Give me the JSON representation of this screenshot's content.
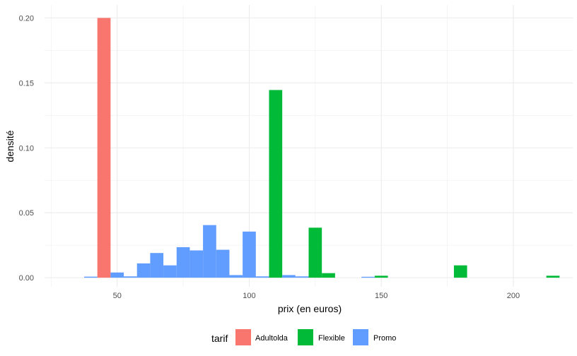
{
  "chart_data": {
    "type": "bar",
    "xlabel": "prix (en euros)",
    "ylabel": "densité",
    "xlim": [
      22.5,
      222.5
    ],
    "ylim": [
      -0.007,
      0.21
    ],
    "x_ticks": [
      50,
      100,
      150,
      200
    ],
    "x_tick_labels": [
      "50",
      "100",
      "150",
      "200"
    ],
    "y_ticks": [
      0,
      0.05,
      0.1,
      0.15,
      0.2
    ],
    "y_tick_labels": [
      "0.00",
      "0.05",
      "0.10",
      "0.15",
      "0.20"
    ],
    "grid": true,
    "bin_width": 5,
    "legend": {
      "title": "tarif",
      "position": "bottom"
    },
    "series": [
      {
        "name": "Adultolda",
        "color": "#F8766D",
        "bins": [
          {
            "x": 45,
            "y": 0.2
          }
        ]
      },
      {
        "name": "Flexible",
        "color": "#00BA38",
        "bins": [
          {
            "x": 110,
            "y": 0.1445
          },
          {
            "x": 125,
            "y": 0.0385
          },
          {
            "x": 130,
            "y": 0.0035
          },
          {
            "x": 150,
            "y": 0.0015
          },
          {
            "x": 180,
            "y": 0.0095
          },
          {
            "x": 215,
            "y": 0.0015
          }
        ]
      },
      {
        "name": "Promo",
        "color": "#619CFF",
        "bins": [
          {
            "x": 40,
            "y": 0.0008
          },
          {
            "x": 50,
            "y": 0.004
          },
          {
            "x": 55,
            "y": 0.001
          },
          {
            "x": 60,
            "y": 0.011
          },
          {
            "x": 65,
            "y": 0.019
          },
          {
            "x": 70,
            "y": 0.0095
          },
          {
            "x": 75,
            "y": 0.0235
          },
          {
            "x": 80,
            "y": 0.021
          },
          {
            "x": 85,
            "y": 0.0405
          },
          {
            "x": 90,
            "y": 0.0215
          },
          {
            "x": 95,
            "y": 0.002
          },
          {
            "x": 100,
            "y": 0.0355
          },
          {
            "x": 105,
            "y": 0.001
          },
          {
            "x": 115,
            "y": 0.002
          },
          {
            "x": 120,
            "y": 0.001
          },
          {
            "x": 145,
            "y": 0.0007
          }
        ]
      }
    ]
  }
}
